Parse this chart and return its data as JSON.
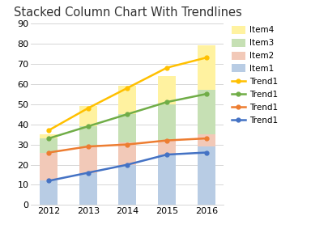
{
  "title": "Stacked Column Chart With Trendlines",
  "years": [
    2012,
    2013,
    2014,
    2015,
    2016
  ],
  "item1": [
    12,
    16,
    20,
    25,
    29
  ],
  "item2": [
    14,
    13,
    11,
    7,
    6
  ],
  "item3": [
    7,
    10,
    14,
    18,
    22
  ],
  "item4": [
    2,
    10,
    14,
    14,
    22
  ],
  "trend_total": [
    37,
    48,
    58,
    68,
    73
  ],
  "trend_item3": [
    33,
    39,
    45,
    51,
    55
  ],
  "trend_item2": [
    26,
    29,
    30,
    32,
    33
  ],
  "trend_item1": [
    12,
    16,
    20,
    25,
    26
  ],
  "bar_width": 0.45,
  "color_item1": "#b8cce4",
  "color_item2": "#f2c9b8",
  "color_item3": "#c6e0b4",
  "color_item4": "#fff2a0",
  "color_trend_total": "#ffc000",
  "color_trend_item3": "#70ad47",
  "color_trend_item2": "#ed7d31",
  "color_trend_item1": "#4472c4",
  "ylim": [
    0,
    90
  ],
  "yticks": [
    0,
    10,
    20,
    30,
    40,
    50,
    60,
    70,
    80,
    90
  ],
  "bg_color": "#ffffff",
  "plot_area_color": "#ffffff",
  "grid_color": "#d0d0d0",
  "title_fontsize": 10.5,
  "tick_fontsize": 8,
  "legend_fontsize": 7.5
}
